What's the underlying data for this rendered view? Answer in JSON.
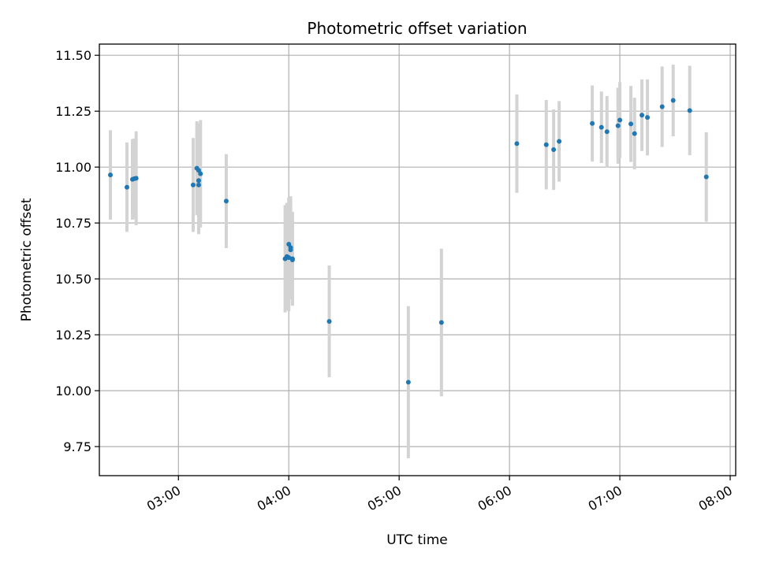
{
  "chart_data": {
    "type": "scatter",
    "title": "Photometric offset variation",
    "xlabel": "UTC time",
    "ylabel": "Photometric offset",
    "x_unit": "UTC time (HH:MM)",
    "xlim": [
      "02:17",
      "08:03"
    ],
    "ylim": [
      9.62,
      11.55
    ],
    "grid": true,
    "x_tick_labels": [
      "03:00",
      "04:00",
      "05:00",
      "06:00",
      "07:00",
      "08:00"
    ],
    "y_tick_labels": [
      "9.75",
      "10.00",
      "10.25",
      "10.50",
      "10.75",
      "11.00",
      "11.25",
      "11.50"
    ],
    "y_ticks": [
      9.75,
      10.0,
      10.25,
      10.5,
      10.75,
      11.0,
      11.25,
      11.5
    ],
    "colors": {
      "point": "#1f77b4",
      "errorbar": "#d3d3d3",
      "grid": "#b0b0b0"
    },
    "series": [
      {
        "points": [
          {
            "x": "02:23",
            "y": 10.965,
            "err": 0.2
          },
          {
            "x": "02:32",
            "y": 10.91,
            "err": 0.2
          },
          {
            "x": "02:35",
            "y": 10.945,
            "err": 0.18
          },
          {
            "x": "02:36",
            "y": 10.948,
            "err": 0.18
          },
          {
            "x": "02:37",
            "y": 10.95,
            "err": 0.21
          },
          {
            "x": "03:08",
            "y": 10.92,
            "err": 0.21
          },
          {
            "x": "03:10",
            "y": 10.995,
            "err": 0.21
          },
          {
            "x": "03:11",
            "y": 10.985,
            "err": 0.21
          },
          {
            "x": "03:11",
            "y": 10.94,
            "err": 0.24
          },
          {
            "x": "03:11",
            "y": 10.92,
            "err": 0.21
          },
          {
            "x": "03:12",
            "y": 10.97,
            "err": 0.24
          },
          {
            "x": "03:26",
            "y": 10.848,
            "err": 0.21
          },
          {
            "x": "03:58",
            "y": 10.59,
            "err": 0.24
          },
          {
            "x": "03:59",
            "y": 10.6,
            "err": 0.24
          },
          {
            "x": "04:00",
            "y": 10.655,
            "err": 0.21
          },
          {
            "x": "04:00",
            "y": 10.595,
            "err": 0.24
          },
          {
            "x": "04:01",
            "y": 10.64,
            "err": 0.23
          },
          {
            "x": "04:01",
            "y": 10.63,
            "err": 0.22
          },
          {
            "x": "04:02",
            "y": 10.59,
            "err": 0.21
          },
          {
            "x": "04:02",
            "y": 10.585,
            "err": 0.2
          },
          {
            "x": "04:22",
            "y": 10.31,
            "err": 0.25
          },
          {
            "x": "05:05",
            "y": 10.038,
            "err": 0.34
          },
          {
            "x": "05:23",
            "y": 10.305,
            "err": 0.33
          },
          {
            "x": "06:04",
            "y": 11.105,
            "err": 0.22
          },
          {
            "x": "06:20",
            "y": 11.1,
            "err": 0.2
          },
          {
            "x": "06:24",
            "y": 11.078,
            "err": 0.18
          },
          {
            "x": "06:27",
            "y": 11.115,
            "err": 0.18
          },
          {
            "x": "06:45",
            "y": 11.195,
            "err": 0.17
          },
          {
            "x": "06:50",
            "y": 11.178,
            "err": 0.16
          },
          {
            "x": "06:53",
            "y": 11.158,
            "err": 0.16
          },
          {
            "x": "06:59",
            "y": 11.185,
            "err": 0.17
          },
          {
            "x": "07:00",
            "y": 11.21,
            "err": 0.17
          },
          {
            "x": "07:06",
            "y": 11.193,
            "err": 0.17
          },
          {
            "x": "07:08",
            "y": 11.15,
            "err": 0.16
          },
          {
            "x": "07:12",
            "y": 11.232,
            "err": 0.16
          },
          {
            "x": "07:15",
            "y": 11.222,
            "err": 0.17
          },
          {
            "x": "07:23",
            "y": 11.27,
            "err": 0.18
          },
          {
            "x": "07:29",
            "y": 11.298,
            "err": 0.16
          },
          {
            "x": "07:38",
            "y": 11.253,
            "err": 0.2
          },
          {
            "x": "07:47",
            "y": 10.956,
            "err": 0.2
          }
        ]
      }
    ]
  }
}
